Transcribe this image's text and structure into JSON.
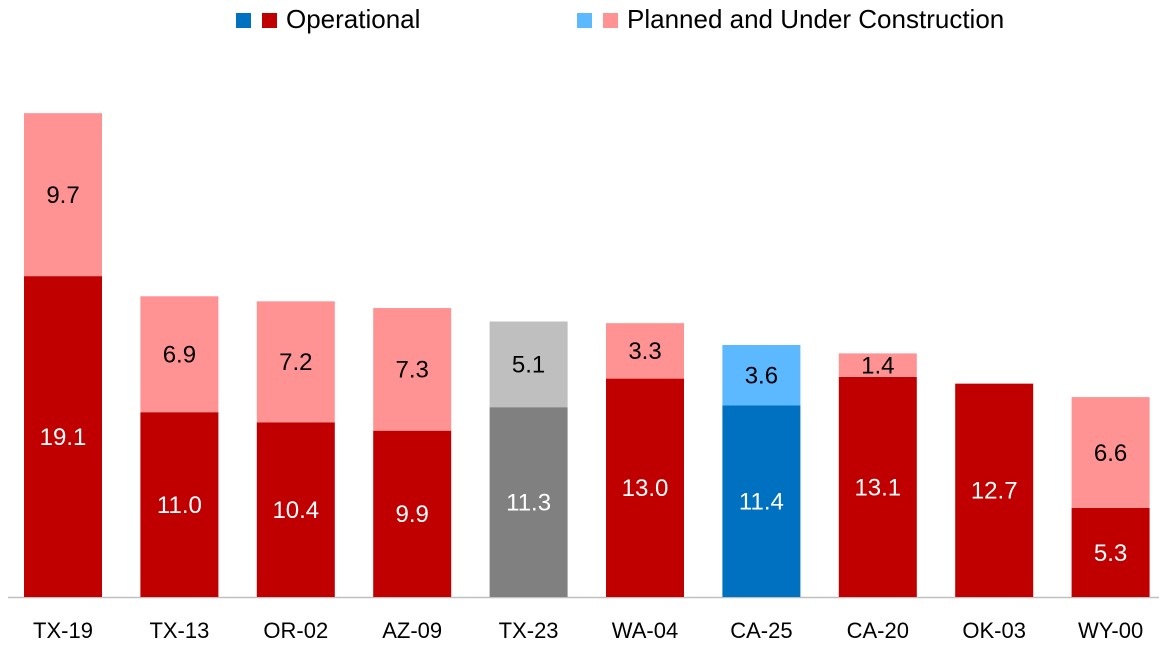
{
  "chart_data": {
    "type": "stacked_bar",
    "categories": [
      "TX-19",
      "TX-13",
      "OR-02",
      "AZ-09",
      "TX-23",
      "WA-04",
      "CA-25",
      "CA-20",
      "OK-03",
      "WY-00"
    ],
    "series": [
      {
        "name": "Operational",
        "color": "#c00000",
        "legend_colors": [
          "#0070c0",
          "#c00000"
        ],
        "colors": [
          "#c00000",
          "#c00000",
          "#c00000",
          "#c00000",
          "#808080",
          "#c00000",
          "#0070c0",
          "#c00000",
          "#c00000",
          "#c00000"
        ],
        "values": [
          19.1,
          11,
          10.4,
          9.9,
          11.3,
          13,
          11.4,
          13.1,
          12.7,
          5.3
        ],
        "value_labels": [
          "19.1",
          "11.0",
          "10.4",
          "9.9",
          "11.3",
          "13.0",
          "11.4",
          "13.1",
          "12.7",
          "5.3"
        ]
      },
      {
        "name": "Planned and Under Construction",
        "color": "#ff9393",
        "legend_colors": [
          "#5cb8ff",
          "#ff9393"
        ],
        "colors": [
          "#ff9393",
          "#ff9393",
          "#ff9393",
          "#ff9393",
          "#bfbfbf",
          "#ff9393",
          "#5cb8ff",
          "#ff9393",
          "#ff9393",
          "#ff9393"
        ],
        "values": [
          9.7,
          6.9,
          7.2,
          7.3,
          5.1,
          3.3,
          3.6,
          1.4,
          null,
          6.6
        ],
        "value_labels": [
          "9.7",
          "6.9",
          "7.2",
          "7.3",
          "5.1",
          "3.3",
          "3.6",
          "1.4",
          null,
          "6.6"
        ]
      }
    ],
    "ylim": [
      0,
      30
    ]
  }
}
